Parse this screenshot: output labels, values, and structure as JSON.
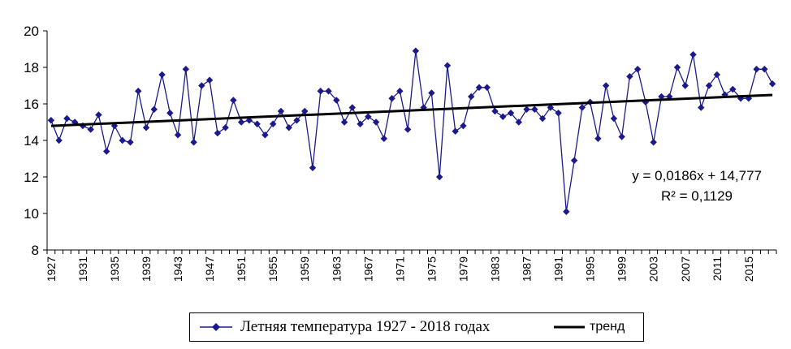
{
  "chart_data": {
    "type": "line",
    "x": [
      1927,
      1928,
      1929,
      1930,
      1931,
      1932,
      1933,
      1934,
      1935,
      1936,
      1937,
      1938,
      1939,
      1940,
      1941,
      1942,
      1943,
      1944,
      1945,
      1946,
      1947,
      1948,
      1949,
      1950,
      1951,
      1952,
      1953,
      1954,
      1955,
      1956,
      1957,
      1958,
      1959,
      1960,
      1961,
      1962,
      1963,
      1964,
      1965,
      1966,
      1967,
      1968,
      1969,
      1970,
      1971,
      1972,
      1973,
      1974,
      1975,
      1976,
      1977,
      1978,
      1979,
      1980,
      1981,
      1982,
      1983,
      1984,
      1985,
      1986,
      1987,
      1988,
      1989,
      1990,
      1991,
      1992,
      1993,
      1994,
      1995,
      1996,
      1997,
      1998,
      1999,
      2000,
      2001,
      2002,
      2003,
      2004,
      2005,
      2006,
      2007,
      2008,
      2009,
      2010,
      2011,
      2012,
      2013,
      2014,
      2015,
      2016,
      2017,
      2018
    ],
    "series": [
      {
        "name": "Летняя температура 1927 - 2018 годах",
        "color": "#1a1a8c",
        "marker": "diamond",
        "values": [
          15.1,
          14.0,
          15.2,
          15.0,
          14.8,
          14.6,
          15.4,
          13.4,
          14.8,
          14.0,
          13.9,
          16.7,
          14.7,
          15.7,
          17.6,
          15.5,
          14.3,
          17.9,
          13.9,
          17.0,
          17.3,
          14.4,
          14.7,
          16.2,
          15.0,
          15.1,
          14.9,
          14.3,
          14.9,
          15.6,
          14.7,
          15.1,
          15.6,
          12.5,
          16.7,
          16.7,
          16.2,
          15.0,
          15.8,
          14.9,
          15.3,
          15.0,
          14.1,
          16.3,
          16.7,
          14.6,
          18.9,
          15.8,
          16.6,
          12.0,
          18.1,
          14.5,
          14.8,
          16.4,
          16.9,
          16.9,
          15.6,
          15.3,
          15.5,
          15.0,
          15.7,
          15.7,
          15.2,
          15.8,
          15.5,
          10.1,
          12.9,
          15.8,
          16.1,
          14.1,
          17.0,
          15.2,
          14.2,
          17.5,
          17.9,
          16.1,
          13.9,
          16.4,
          16.4,
          18.0,
          17.0,
          18.7,
          15.8,
          17.0,
          17.6,
          16.5,
          16.8,
          16.3,
          16.3,
          17.9,
          17.9,
          17.1
        ]
      },
      {
        "name": "тренд",
        "color": "#000000",
        "slope": 0.0186,
        "intercept": 14.777
      }
    ],
    "x_tick_labels": [
      "1927",
      "1931",
      "1935",
      "1939",
      "1943",
      "1947",
      "1951",
      "1955",
      "1959",
      "1963",
      "1967",
      "1971",
      "1975",
      "1979",
      "1983",
      "1987",
      "1991",
      "1995",
      "1999",
      "2003",
      "2007",
      "2011",
      "2015"
    ],
    "y_tick_labels": [
      "8",
      "10",
      "12",
      "14",
      "16",
      "18",
      "20"
    ],
    "ylim": [
      8,
      20
    ],
    "xlabel": "",
    "ylabel": "",
    "title": "",
    "grid": false,
    "legend_position": "bottom",
    "equation_text": "y = 0,0186x + 14,777",
    "r2_text": "R² = 0,1129"
  }
}
